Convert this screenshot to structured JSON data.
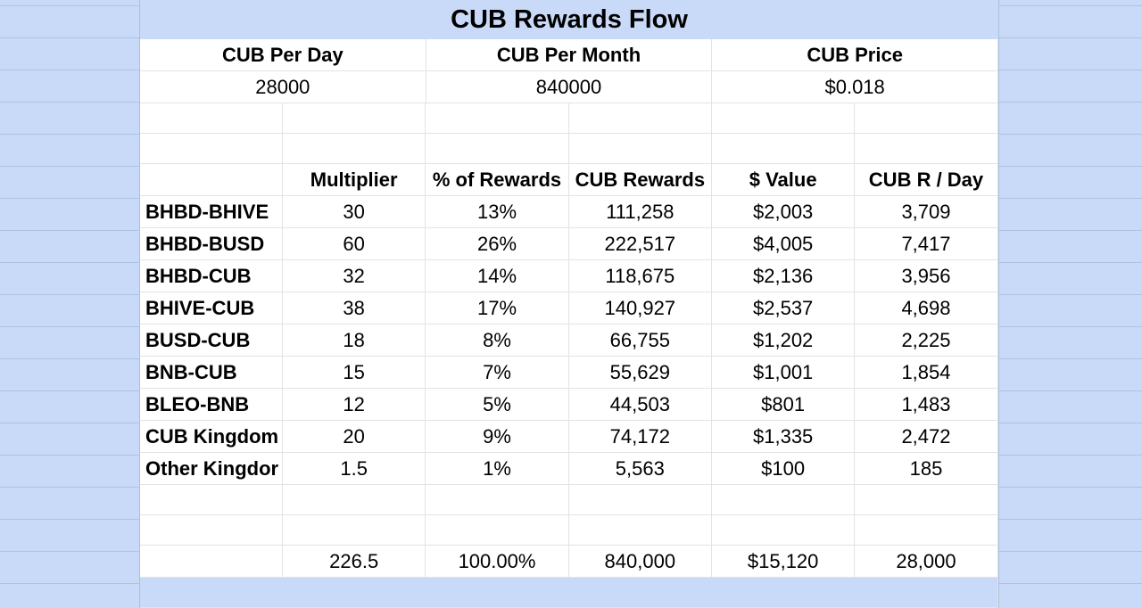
{
  "title": "CUB Rewards Flow",
  "summary": {
    "headers": [
      "CUB Per Day",
      "CUB Per Month",
      "CUB Price"
    ],
    "values": [
      "28000",
      "840000",
      "$0.018"
    ]
  },
  "table": {
    "columns": [
      "",
      "Multiplier",
      "% of Rewards",
      "CUB Rewards",
      "$ Value",
      "CUB R / Day"
    ],
    "rows": [
      [
        "BHBD-BHIVE",
        "30",
        "13%",
        "111,258",
        "$2,003",
        "3,709"
      ],
      [
        "BHBD-BUSD",
        "60",
        "26%",
        "222,517",
        "$4,005",
        "7,417"
      ],
      [
        "BHBD-CUB",
        "32",
        "14%",
        "118,675",
        "$2,136",
        "3,956"
      ],
      [
        "BHIVE-CUB",
        "38",
        "17%",
        "140,927",
        "$2,537",
        "4,698"
      ],
      [
        "BUSD-CUB",
        "18",
        "8%",
        "66,755",
        "$1,202",
        "2,225"
      ],
      [
        "BNB-CUB",
        "15",
        "7%",
        "55,629",
        "$1,001",
        "1,854"
      ],
      [
        "BLEO-BNB",
        "12",
        "5%",
        "44,503",
        "$801",
        "1,483"
      ],
      [
        "CUB Kingdom",
        "20",
        "9%",
        "74,172",
        "$1,335",
        "2,472"
      ],
      [
        "Other Kingdor",
        "1.5",
        "1%",
        "5,563",
        "$100",
        "185"
      ]
    ],
    "totals": [
      "",
      "226.5",
      "100.00%",
      "840,000",
      "$15,120",
      "28,000"
    ]
  },
  "colors": {
    "sheet_blue": "#c9daf8",
    "cell_white": "#ffffff",
    "gridline": "#e3e3e3"
  }
}
